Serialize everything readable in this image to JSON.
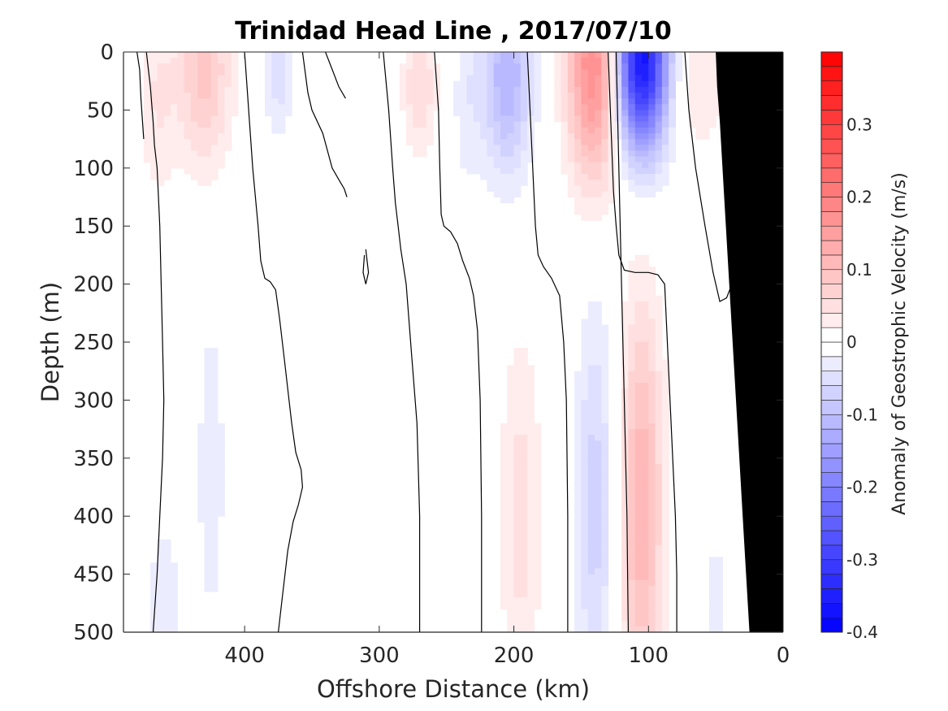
{
  "chart_data": {
    "type": "heatmap",
    "title": "Trinidad Head Line , 2017/07/10",
    "xlabel": "Offshore Distance (km)",
    "ylabel": "Depth (m)",
    "xlim": [
      490,
      0
    ],
    "ylim": [
      0,
      500
    ],
    "y_reversed": true,
    "x_reversed": true,
    "x_ticks": [
      400,
      300,
      200,
      100,
      0
    ],
    "y_ticks": [
      0,
      50,
      100,
      150,
      200,
      250,
      300,
      350,
      400,
      450,
      500
    ],
    "colorbar": {
      "label": "Anomaly of Geostrophic Velocity (m/s)",
      "range": [
        -0.4,
        0.4
      ],
      "step": 0.02,
      "ticks": [
        -0.4,
        -0.3,
        -0.2,
        -0.1,
        0,
        0.1,
        0.2,
        0.3
      ],
      "colormap": "blue-white-red",
      "neg_color": "#0000ff",
      "pos_color": "#ff0000"
    },
    "bottom_color": "#000000",
    "grid": false,
    "features": [
      {
        "x": 430,
        "depth": 15,
        "value": 0.09,
        "sx": 14,
        "sy": 60,
        "note": "positive"
      },
      {
        "x": 465,
        "depth": 40,
        "value": 0.04,
        "sx": 10,
        "sy": 60
      },
      {
        "x": 375,
        "depth": 20,
        "value": -0.05,
        "sx": 7,
        "sy": 40
      },
      {
        "x": 270,
        "depth": 30,
        "value": 0.06,
        "sx": 9,
        "sy": 40
      },
      {
        "x": 235,
        "depth": 40,
        "value": -0.03,
        "sx": 8,
        "sy": 60
      },
      {
        "x": 205,
        "depth": 20,
        "value": -0.12,
        "sx": 13,
        "sy": 60
      },
      {
        "x": 140,
        "depth": 10,
        "value": 0.19,
        "sx": 14,
        "sy": 70
      },
      {
        "x": 105,
        "depth": 5,
        "value": -0.38,
        "sx": 14,
        "sy": 55
      },
      {
        "x": 65,
        "depth": 20,
        "value": 0.04,
        "sx": 18,
        "sy": 50
      },
      {
        "x": 140,
        "depth": 390,
        "value": -0.07,
        "sx": 10,
        "sy": 120
      },
      {
        "x": 105,
        "depth": 390,
        "value": 0.12,
        "sx": 11,
        "sy": 120
      },
      {
        "x": 195,
        "depth": 400,
        "value": 0.05,
        "sx": 11,
        "sy": 110
      },
      {
        "x": 425,
        "depth": 360,
        "value": -0.03,
        "sx": 9,
        "sy": 120
      },
      {
        "x": 460,
        "depth": 470,
        "value": -0.03,
        "sx": 10,
        "sy": 60
      },
      {
        "x": 50,
        "depth": 470,
        "value": -0.025,
        "sx": 8,
        "sy": 60
      }
    ],
    "zero_contours": [
      [
        [
          480,
          0
        ],
        [
          478,
          15
        ],
        [
          477,
          40
        ],
        [
          475,
          75
        ]
      ],
      [
        [
          473,
          0
        ],
        [
          470,
          30
        ],
        [
          468,
          60
        ],
        [
          467,
          80
        ],
        [
          465,
          100
        ],
        [
          463,
          150
        ],
        [
          462,
          200
        ],
        [
          461,
          250
        ],
        [
          460,
          300
        ],
        [
          461,
          350
        ],
        [
          463,
          400
        ],
        [
          465,
          450
        ],
        [
          468,
          500
        ]
      ],
      [
        [
          400,
          0
        ],
        [
          397,
          50
        ],
        [
          394,
          100
        ],
        [
          390,
          150
        ],
        [
          388,
          180
        ],
        [
          385,
          195
        ],
        [
          381,
          198
        ],
        [
          377,
          205
        ],
        [
          374,
          230
        ],
        [
          370,
          270
        ],
        [
          367,
          300
        ],
        [
          365,
          320
        ],
        [
          362,
          345
        ],
        [
          358,
          360
        ],
        [
          357,
          375
        ],
        [
          360,
          390
        ],
        [
          364,
          405
        ],
        [
          368,
          430
        ],
        [
          372,
          470
        ],
        [
          375,
          500
        ]
      ],
      [
        [
          357,
          0
        ],
        [
          353,
          35
        ],
        [
          350,
          50
        ],
        [
          342,
          70
        ],
        [
          335,
          100
        ],
        [
          330,
          110
        ],
        [
          326,
          118
        ],
        [
          324,
          125
        ]
      ],
      [
        [
          340,
          0
        ],
        [
          335,
          15
        ],
        [
          330,
          30
        ],
        [
          325,
          40
        ]
      ],
      [
        [
          310,
          170
        ],
        [
          309,
          180
        ],
        [
          308,
          190
        ],
        [
          310,
          200
        ],
        [
          312,
          190
        ],
        [
          311,
          175
        ]
      ],
      [
        [
          297,
          0
        ],
        [
          293,
          50
        ],
        [
          290,
          100
        ],
        [
          288,
          130
        ],
        [
          286,
          150
        ],
        [
          284,
          170
        ],
        [
          280,
          200
        ],
        [
          276,
          260
        ],
        [
          272,
          320
        ],
        [
          270,
          400
        ],
        [
          270,
          500
        ]
      ],
      [
        [
          259,
          0
        ],
        [
          256,
          50
        ],
        [
          255,
          100
        ],
        [
          254,
          140
        ],
        [
          252,
          150
        ],
        [
          247,
          155
        ],
        [
          242,
          165
        ],
        [
          238,
          180
        ],
        [
          233,
          195
        ],
        [
          230,
          210
        ],
        [
          227,
          240
        ],
        [
          225,
          300
        ],
        [
          224,
          400
        ],
        [
          224,
          500
        ]
      ],
      [
        [
          190,
          0
        ],
        [
          188,
          50
        ],
        [
          186,
          100
        ],
        [
          184,
          150
        ],
        [
          182,
          175
        ],
        [
          178,
          185
        ],
        [
          172,
          195
        ],
        [
          166,
          210
        ],
        [
          163,
          250
        ],
        [
          161,
          300
        ],
        [
          160,
          400
        ],
        [
          160,
          500
        ]
      ],
      [
        [
          130,
          0
        ],
        [
          128,
          60
        ],
        [
          126,
          120
        ],
        [
          124,
          150
        ],
        [
          122,
          175
        ],
        [
          118,
          188
        ],
        [
          110,
          190
        ],
        [
          100,
          190
        ],
        [
          93,
          192
        ],
        [
          88,
          200
        ],
        [
          86,
          250
        ],
        [
          84,
          300
        ],
        [
          82,
          350
        ],
        [
          80,
          400
        ],
        [
          79,
          450
        ],
        [
          79,
          500
        ]
      ],
      [
        [
          73,
          0
        ],
        [
          70,
          50
        ],
        [
          65,
          100
        ],
        [
          58,
          150
        ],
        [
          52,
          190
        ],
        [
          47,
          215
        ],
        [
          42,
          212
        ],
        [
          38,
          200
        ]
      ],
      [
        [
          124,
          0
        ],
        [
          122,
          100
        ],
        [
          120,
          200
        ],
        [
          118,
          300
        ],
        [
          116,
          400
        ],
        [
          115,
          500
        ]
      ],
      [
        [
          44,
          0
        ],
        [
          42,
          50
        ],
        [
          41,
          120
        ],
        [
          40,
          160
        ],
        [
          39,
          190
        ]
      ]
    ],
    "bathymetry": [
      [
        25,
        500
      ],
      [
        29,
        420
      ],
      [
        35,
        300
      ],
      [
        40,
        200
      ],
      [
        45,
        100
      ],
      [
        47,
        60
      ],
      [
        49,
        30
      ],
      [
        50,
        0
      ]
    ]
  }
}
